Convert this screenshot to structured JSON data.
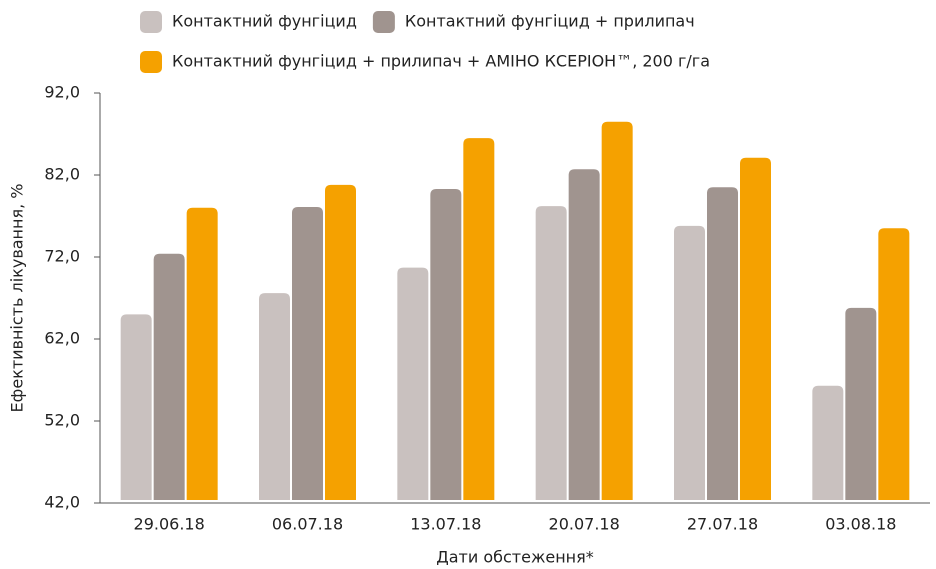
{
  "chart_data": {
    "type": "bar",
    "categories": [
      "29.06.18",
      "06.07.18",
      "13.07.18",
      "20.07.18",
      "27.07.18",
      "03.08.18"
    ],
    "series": [
      {
        "name": "Контактний фунгіцид",
        "color": "#c9c1bf",
        "values": [
          65.0,
          67.6,
          70.7,
          78.2,
          75.8,
          56.3
        ]
      },
      {
        "name": "Контактний фунгіцид + прилипач",
        "color": "#a0948f",
        "values": [
          72.4,
          78.1,
          80.3,
          82.7,
          80.5,
          65.8
        ]
      },
      {
        "name": "Контактний фунгіцид + прилипач + АМІНО КСЕРІОН™, 200 г/га",
        "color": "#f5a100",
        "values": [
          78.0,
          80.8,
          86.5,
          88.5,
          84.1,
          75.5
        ]
      }
    ],
    "ylim": [
      42,
      92
    ],
    "yticks": [
      {
        "value": 42,
        "label": "42,0"
      },
      {
        "value": 52,
        "label": "52,0"
      },
      {
        "value": 62,
        "label": "62,0"
      },
      {
        "value": 72,
        "label": "72,0"
      },
      {
        "value": 82,
        "label": "82,0"
      },
      {
        "value": 92,
        "label": "92,0"
      }
    ],
    "y_label": "Ефективність лікування, %",
    "x_label": "Дати обстеження*",
    "grid": false
  }
}
